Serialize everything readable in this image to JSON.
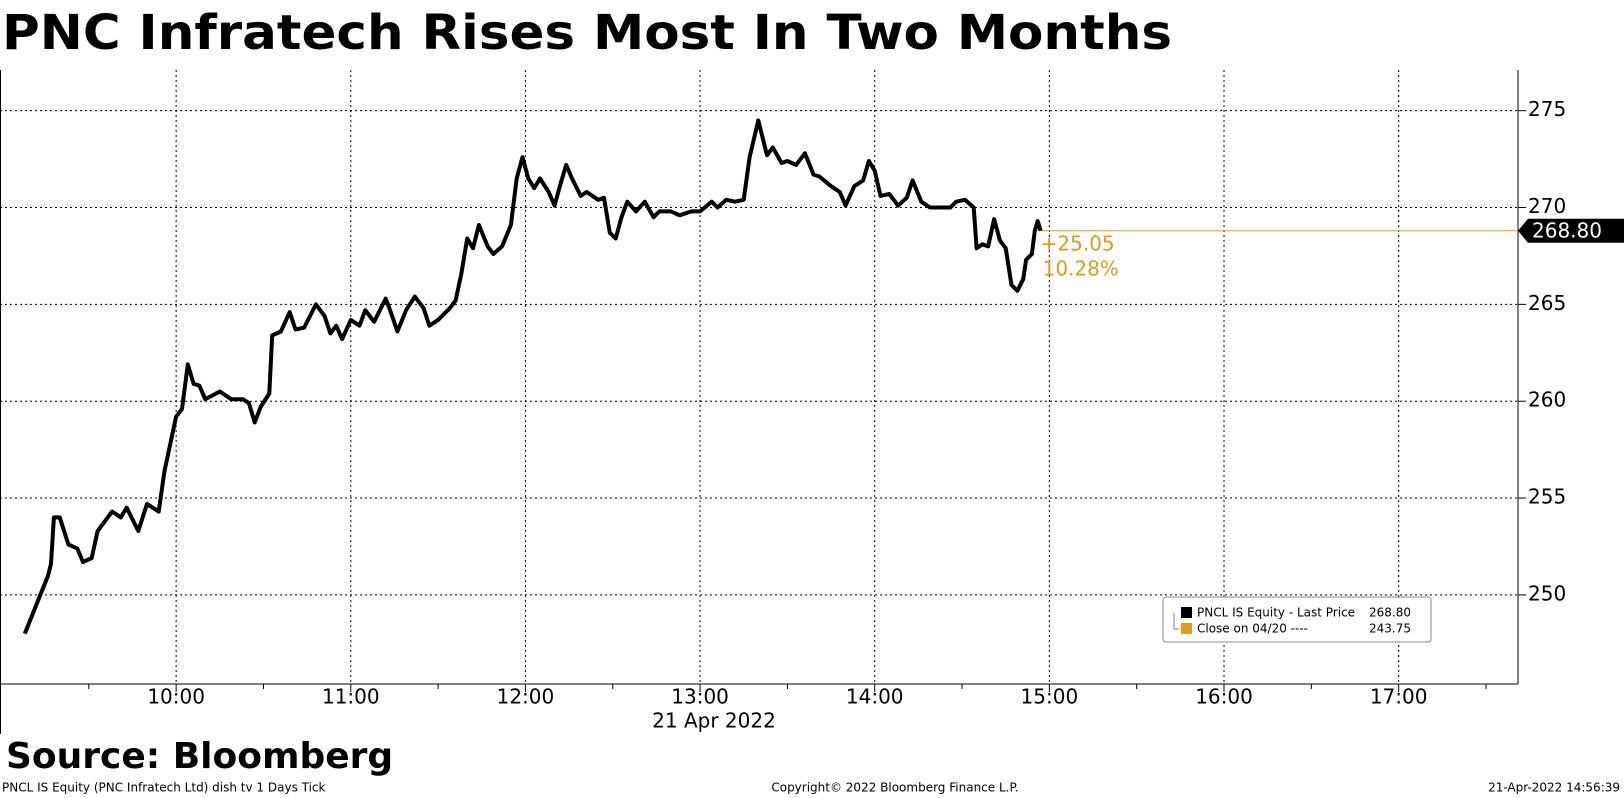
{
  "chart_data": {
    "type": "line",
    "title": "PNC Infratech Rises Most In Two Months",
    "x_label": "21 Apr 2022",
    "x": [
      "09:08",
      "09:16",
      "09:17",
      "09:18",
      "09:20",
      "09:23",
      "09:26",
      "09:28",
      "09:31",
      "09:33",
      "09:35",
      "09:38",
      "09:41",
      "09:43",
      "09:47",
      "09:50",
      "09:54",
      "09:56",
      "10:00",
      "10:02",
      "10:04",
      "10:06",
      "10:08",
      "10:10",
      "10:15",
      "10:19",
      "10:23",
      "10:25",
      "10:27",
      "10:29",
      "10:32",
      "10:33",
      "10:36",
      "10:39",
      "10:41",
      "10:44",
      "10:46",
      "10:48",
      "10:51",
      "10:53",
      "10:55",
      "10:57",
      "11:00",
      "11:03",
      "11:05",
      "11:08",
      "11:12",
      "11:14",
      "11:16",
      "11:19",
      "11:22",
      "11:25",
      "11:27",
      "11:30",
      "11:34",
      "11:36",
      "11:38",
      "11:40",
      "11:42",
      "11:44",
      "11:47",
      "11:49",
      "11:52",
      "11:55",
      "11:57",
      "11:59",
      "12:01",
      "12:03",
      "12:05",
      "12:08",
      "12:10",
      "12:12",
      "12:14",
      "12:16",
      "12:19",
      "12:21",
      "12:25",
      "12:27",
      "12:29",
      "12:31",
      "12:33",
      "12:35",
      "12:38",
      "12:41",
      "12:44",
      "12:46",
      "12:50",
      "12:53",
      "12:57",
      "13:00",
      "13:04",
      "13:06",
      "13:09",
      "13:12",
      "13:15",
      "13:17",
      "13:20",
      "13:23",
      "13:25",
      "13:28",
      "13:30",
      "13:33",
      "13:36",
      "13:39",
      "13:41",
      "13:45",
      "13:48",
      "13:50",
      "13:53",
      "13:56",
      "13:58",
      "14:00",
      "14:02",
      "14:05",
      "14:08",
      "14:11",
      "14:13",
      "14:16",
      "14:19",
      "14:22",
      "14:26",
      "14:28",
      "14:31",
      "14:34",
      "14:35",
      "14:37",
      "14:39",
      "14:41",
      "14:43",
      "14:45",
      "14:47",
      "14:49",
      "14:51",
      "14:52",
      "14:54",
      "14:55",
      "14:56",
      "14:57"
    ],
    "series": [
      {
        "name": "PNCL IS Equity - Last Price",
        "color": "#000000",
        "legend_value": {
          "value": 268.8,
          "label": "268.80"
        },
        "values": [
          248.0,
          251.0,
          251.6,
          254.0,
          254.0,
          252.6,
          252.4,
          251.7,
          251.9,
          253.3,
          253.7,
          254.3,
          254.0,
          254.5,
          253.3,
          254.7,
          254.3,
          256.4,
          259.2,
          259.6,
          261.9,
          260.9,
          260.8,
          260.1,
          260.5,
          260.1,
          260.1,
          259.9,
          258.9,
          259.7,
          260.4,
          263.4,
          263.6,
          264.6,
          263.7,
          263.8,
          264.4,
          265.0,
          264.4,
          263.5,
          263.9,
          263.2,
          264.2,
          263.9,
          264.7,
          264.1,
          265.3,
          264.5,
          263.6,
          264.7,
          265.4,
          264.8,
          263.9,
          264.2,
          264.8,
          265.2,
          266.6,
          268.4,
          267.9,
          269.1,
          268.0,
          267.6,
          268.0,
          269.1,
          271.5,
          272.6,
          271.5,
          271.0,
          271.5,
          270.8,
          270.1,
          271.2,
          272.2,
          271.5,
          270.6,
          270.8,
          270.4,
          270.5,
          268.7,
          268.4,
          269.5,
          270.3,
          269.8,
          270.3,
          269.5,
          269.8,
          269.8,
          269.6,
          269.8,
          269.8,
          270.3,
          270.0,
          270.4,
          270.3,
          270.4,
          272.6,
          274.5,
          272.7,
          273.1,
          272.3,
          272.4,
          272.2,
          272.8,
          271.7,
          271.6,
          271.1,
          270.8,
          270.1,
          271.1,
          271.4,
          272.4,
          271.9,
          270.6,
          270.7,
          270.1,
          270.5,
          271.4,
          270.3,
          270.0,
          270.0,
          270.0,
          270.3,
          270.4,
          270.0,
          267.9,
          268.1,
          268.0,
          269.4,
          268.3,
          267.9,
          266.0,
          265.7,
          266.3,
          267.3,
          267.6,
          268.8,
          269.3,
          268.8
        ]
      },
      {
        "name": "Close on 04/20 ----",
        "color": "#e39b1b",
        "legend_value": {
          "value": 243.75,
          "label": "243.75"
        }
      }
    ],
    "last_price": {
      "value": 268.8,
      "label": "268.80",
      "color": "#e39b1b"
    },
    "change": {
      "value": 25.05,
      "label": "+25.05"
    },
    "change_pct": {
      "value": 10.28,
      "label": "10.28%"
    },
    "xlim": [
      "09:00",
      "17:41"
    ],
    "xticks": [
      "10:00",
      "11:00",
      "12:00",
      "13:00",
      "14:00",
      "15:00",
      "16:00",
      "17:00"
    ],
    "ylim": [
      245.4,
      277.1
    ],
    "yticks": [
      250,
      255,
      260,
      265,
      270,
      275
    ],
    "grid": true
  },
  "source": "Source: Bloomberg",
  "footer": {
    "left": "PNCL IS Equity (PNC Infratech Ltd) dish tv 1 Days  Tick",
    "center": "Copyright© 2022 Bloomberg Finance L.P.",
    "right": "21-Apr-2022 14:56:39"
  }
}
